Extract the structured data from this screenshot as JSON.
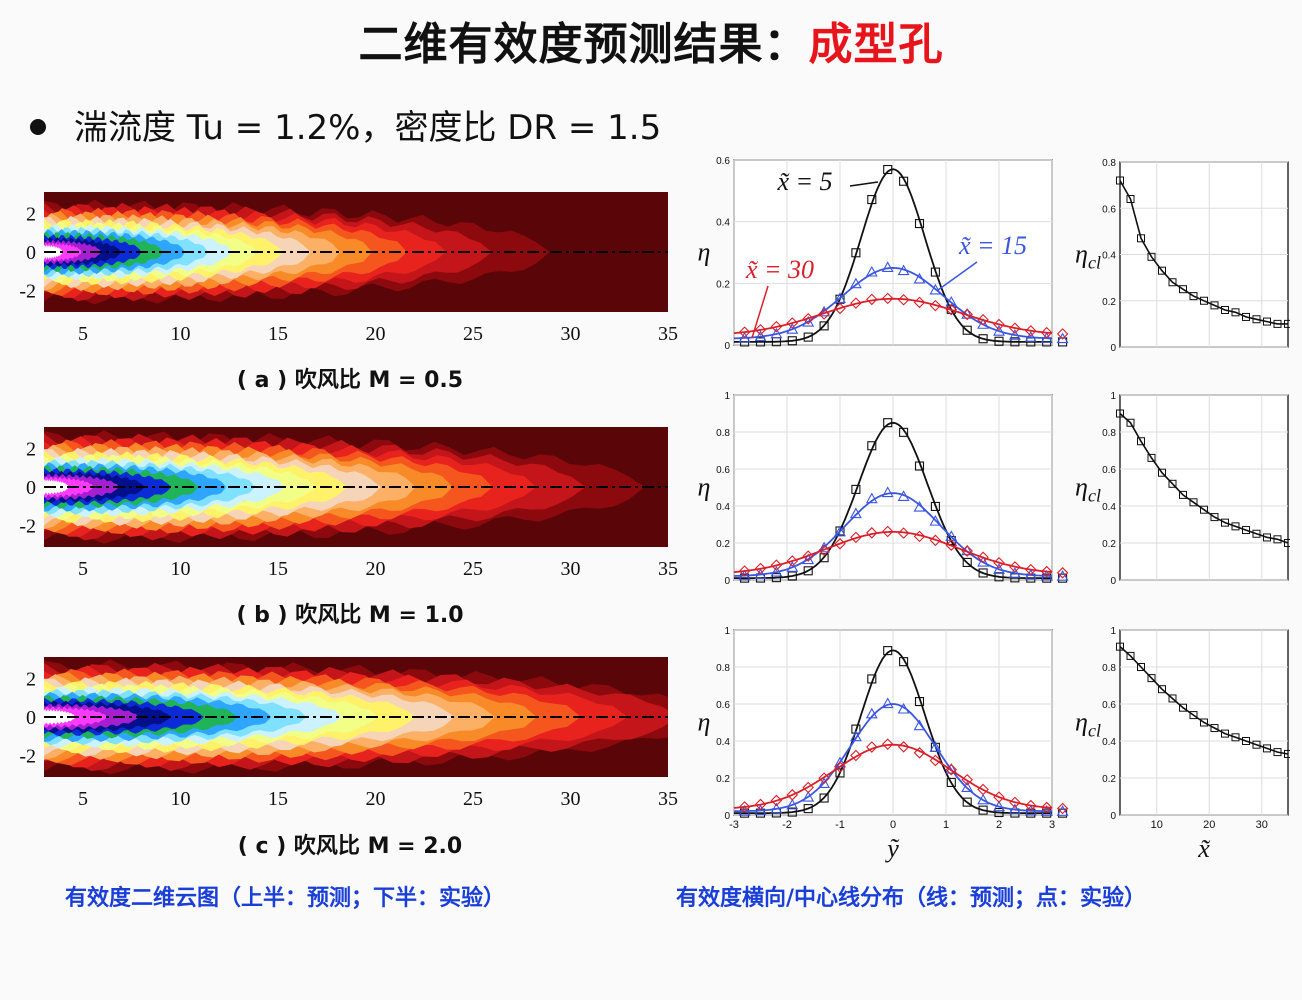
{
  "header": {
    "title_main": "二维有效度预测结果：",
    "title_accent": "成型孔",
    "bullet": "湍流度 Tu = 1.2%，密度比 DR = 1.5"
  },
  "contours": [
    {
      "caption": "( a ) 吹风比 M = 0.5"
    },
    {
      "caption": "( b ) 吹风比 M = 1.0"
    },
    {
      "caption": "( c ) 吹风比 M = 2.0"
    }
  ],
  "contour_axes": {
    "x_ticks": [
      "5",
      "10",
      "15",
      "20",
      "25",
      "30",
      "35"
    ],
    "y_ticks": [
      "2",
      "0",
      "-2"
    ]
  },
  "footer": {
    "left": "有效度二维云图（上半：预测；下半：实验）",
    "right": "有效度横向/中心线分布（线：预测；点：实验）"
  },
  "series_labels": {
    "x5": "x̃ = 5",
    "x15": "x̃ = 15",
    "x30": "x̃ = 30"
  },
  "axis_symbols": {
    "eta": "η",
    "eta_cl": "η",
    "eta_cl_sub": "cl",
    "y_tilde": "ỹ",
    "x_tilde": "x̃"
  },
  "colors": {
    "x5": "#111111",
    "x15": "#3a56e0",
    "x30": "#d8202a"
  },
  "chart_data": [
    {
      "type": "line",
      "panel": "lateral",
      "case": "M = 0.5",
      "ylim": [
        0,
        0.6
      ],
      "xlim": [
        -3,
        3
      ],
      "y_ticks": [
        "0",
        "0.2",
        "0.4",
        "0.6"
      ],
      "series": [
        {
          "name": "x̃ = 5",
          "peak": 0.56,
          "width": 0.6
        },
        {
          "name": "x̃ = 15",
          "peak": 0.23,
          "width": 0.95
        },
        {
          "name": "x̃ = 30",
          "peak": 0.12,
          "width": 1.3
        }
      ]
    },
    {
      "type": "line",
      "panel": "centerline",
      "case": "M = 0.5",
      "ylim": [
        0,
        0.8
      ],
      "xlim": [
        3,
        35
      ],
      "y_ticks": [
        "0",
        "0.2",
        "0.4",
        "0.6",
        "0.8"
      ],
      "x": [
        3,
        5,
        7,
        9,
        11,
        13,
        15,
        17,
        19,
        21,
        23,
        25,
        27,
        29,
        31,
        33,
        35
      ],
      "values": [
        0.72,
        0.64,
        0.47,
        0.39,
        0.33,
        0.28,
        0.25,
        0.22,
        0.2,
        0.18,
        0.16,
        0.15,
        0.13,
        0.12,
        0.11,
        0.1,
        0.1
      ]
    },
    {
      "type": "line",
      "panel": "lateral",
      "case": "M = 1.0",
      "ylim": [
        0,
        1
      ],
      "xlim": [
        -3,
        3
      ],
      "y_ticks": [
        "0",
        "0.2",
        "0.4",
        "0.6",
        "0.8",
        "1"
      ],
      "series": [
        {
          "peak": 0.84,
          "width": 0.65
        },
        {
          "peak": 0.45,
          "width": 0.9
        },
        {
          "peak": 0.23,
          "width": 1.25
        }
      ]
    },
    {
      "type": "line",
      "panel": "centerline",
      "case": "M = 1.0",
      "ylim": [
        0,
        1
      ],
      "xlim": [
        3,
        35
      ],
      "y_ticks": [
        "0",
        "0.2",
        "0.4",
        "0.6",
        "0.8",
        "1"
      ],
      "x": [
        3,
        5,
        7,
        9,
        11,
        13,
        15,
        17,
        19,
        21,
        23,
        25,
        27,
        29,
        31,
        33,
        35
      ],
      "values": [
        0.9,
        0.85,
        0.75,
        0.66,
        0.58,
        0.52,
        0.46,
        0.42,
        0.38,
        0.34,
        0.31,
        0.29,
        0.27,
        0.25,
        0.23,
        0.22,
        0.2
      ]
    },
    {
      "type": "line",
      "panel": "lateral",
      "case": "M = 2.0",
      "ylim": [
        0,
        1
      ],
      "xlim": [
        -3,
        3
      ],
      "x_ticks": [
        "-3",
        "-2",
        "-1",
        "0",
        "1",
        "2",
        "3"
      ],
      "y_ticks": [
        "0",
        "0.2",
        "0.4",
        "0.6",
        "0.8",
        "1"
      ],
      "series": [
        {
          "peak": 0.88,
          "width": 0.6
        },
        {
          "peak": 0.58,
          "width": 0.8
        },
        {
          "peak": 0.35,
          "width": 1.1
        }
      ]
    },
    {
      "type": "line",
      "panel": "centerline",
      "case": "M = 2.0",
      "ylim": [
        0,
        1
      ],
      "xlim": [
        3,
        35
      ],
      "x_ticks": [
        "10",
        "20",
        "30"
      ],
      "y_ticks": [
        "0",
        "0.2",
        "0.4",
        "0.6",
        "0.8",
        "1"
      ],
      "x": [
        3,
        5,
        7,
        9,
        11,
        13,
        15,
        17,
        19,
        21,
        23,
        25,
        27,
        29,
        31,
        33,
        35
      ],
      "values": [
        0.91,
        0.86,
        0.8,
        0.74,
        0.68,
        0.63,
        0.58,
        0.54,
        0.5,
        0.47,
        0.44,
        0.42,
        0.4,
        0.38,
        0.36,
        0.34,
        0.33
      ]
    }
  ]
}
